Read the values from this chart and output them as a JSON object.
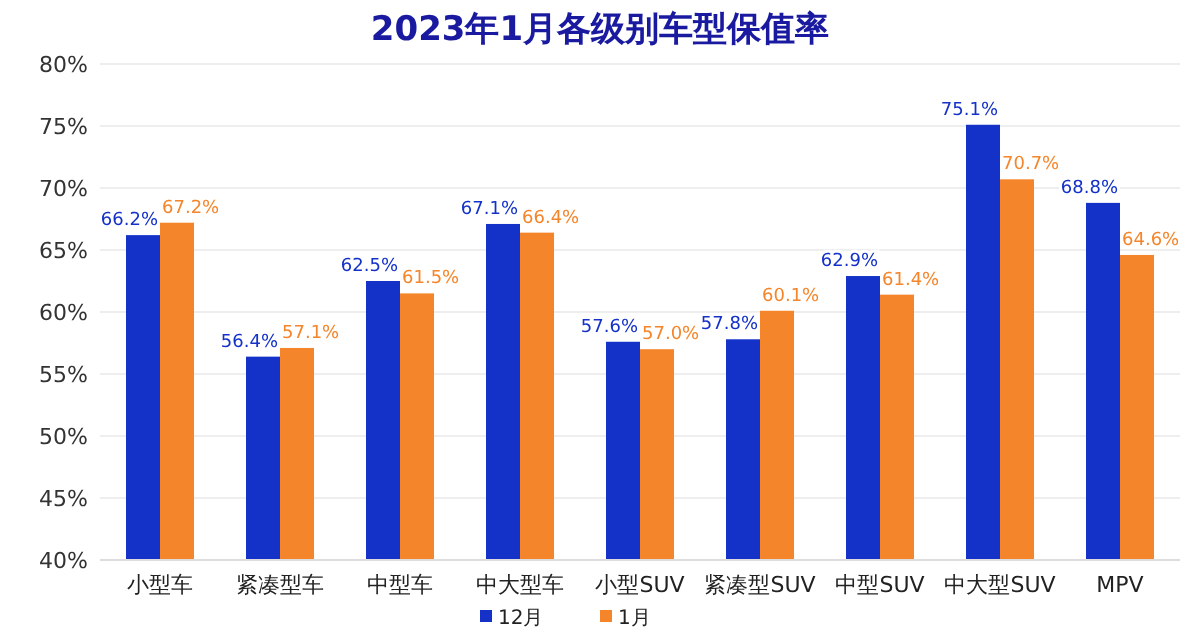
{
  "chart_data": {
    "type": "bar",
    "title": "2023年1月各级别车型保值率",
    "categories": [
      "小型车",
      "紧凑型车",
      "中型车",
      "中大型车",
      "小型SUV",
      "紧凑型SUV",
      "中型SUV",
      "中大型SUV",
      "MPV"
    ],
    "series": [
      {
        "name": "12月",
        "color": "#1432c8",
        "values": [
          66.2,
          56.4,
          62.5,
          67.1,
          57.6,
          57.8,
          62.9,
          75.1,
          68.8
        ],
        "value_labels": [
          "66.2%",
          "56.4%",
          "62.5%",
          "67.1%",
          "57.6%",
          "57.8%",
          "62.9%",
          "75.1%",
          "68.8%"
        ]
      },
      {
        "name": "1月",
        "color": "#f5852a",
        "values": [
          67.2,
          57.1,
          61.5,
          66.4,
          57.0,
          60.1,
          61.4,
          70.7,
          64.6
        ],
        "value_labels": [
          "67.2%",
          "57.1%",
          "61.5%",
          "66.4%",
          "57.0%",
          "60.1%",
          "61.4%",
          "70.7%",
          "64.6%"
        ]
      }
    ],
    "ylim": [
      40,
      80
    ],
    "yticks": [
      {
        "value": 40,
        "label": "40%"
      },
      {
        "value": 45,
        "label": "45%"
      },
      {
        "value": 50,
        "label": "50%"
      },
      {
        "value": 55,
        "label": "55%"
      },
      {
        "value": 60,
        "label": "60%"
      },
      {
        "value": 65,
        "label": "65%"
      },
      {
        "value": 70,
        "label": "70%"
      },
      {
        "value": 75,
        "label": "75%"
      },
      {
        "value": 80,
        "label": "80%"
      }
    ],
    "grid": "y",
    "legend": "bottom"
  }
}
